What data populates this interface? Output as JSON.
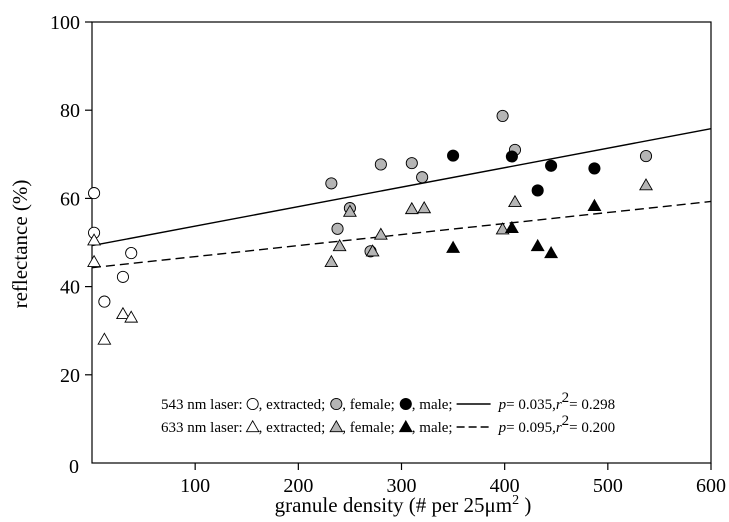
{
  "chart_data": {
    "type": "scatter",
    "xlabel": "granule density (# per 25",
    "xlabel_unit": "μm",
    "xlabel_sup": "2",
    "xlabel_end": " )",
    "ylabel": "reflectance (%)",
    "xlim": [
      0,
      600
    ],
    "ylim": [
      0,
      100
    ],
    "x_ticks": [
      100,
      200,
      300,
      400,
      500,
      600
    ],
    "y_ticks": [
      20,
      40,
      60,
      80,
      100
    ],
    "origin_label": "0",
    "series": [
      {
        "name": "543 nm laser, extracted",
        "marker": "circle",
        "fill": "#ffffff",
        "points": [
          [
            2,
            61.2
          ],
          [
            2,
            52.2
          ],
          [
            12,
            36.6
          ],
          [
            30,
            42.2
          ],
          [
            38,
            47.6
          ]
        ]
      },
      {
        "name": "543 nm laser, female",
        "marker": "circle",
        "fill": "#b5b5b5",
        "points": [
          [
            232,
            63.4
          ],
          [
            238,
            53.1
          ],
          [
            250,
            57.8
          ],
          [
            270,
            48.0
          ],
          [
            280,
            67.7
          ],
          [
            310,
            68.0
          ],
          [
            320,
            64.8
          ],
          [
            398,
            78.7
          ],
          [
            410,
            71.0
          ],
          [
            537,
            69.6
          ]
        ]
      },
      {
        "name": "543 nm laser, male",
        "marker": "circle",
        "fill": "#000000",
        "points": [
          [
            350,
            69.7
          ],
          [
            407,
            69.5
          ],
          [
            432,
            61.8
          ],
          [
            445,
            67.4
          ],
          [
            487,
            66.8
          ]
        ]
      },
      {
        "name": "633 nm laser, extracted",
        "marker": "triangle",
        "fill": "#ffffff",
        "points": [
          [
            2,
            50.5
          ],
          [
            2,
            45.6
          ],
          [
            12,
            28.0
          ],
          [
            30,
            33.8
          ],
          [
            38,
            33.0
          ]
        ]
      },
      {
        "name": "633 nm laser, female",
        "marker": "triangle",
        "fill": "#b5b5b5",
        "points": [
          [
            232,
            45.6
          ],
          [
            240,
            49.2
          ],
          [
            250,
            57.0
          ],
          [
            272,
            48.0
          ],
          [
            280,
            51.8
          ],
          [
            310,
            57.6
          ],
          [
            322,
            57.8
          ],
          [
            398,
            53.0
          ],
          [
            410,
            59.2
          ],
          [
            537,
            63.0
          ]
        ]
      },
      {
        "name": "633 nm laser, male",
        "marker": "triangle",
        "fill": "#000000",
        "points": [
          [
            350,
            48.8
          ],
          [
            407,
            53.3
          ],
          [
            432,
            49.2
          ],
          [
            445,
            47.6
          ],
          [
            487,
            58.3
          ]
        ]
      }
    ],
    "fits": [
      {
        "name": "543 nm laser fit",
        "style": "solid",
        "x": [
          0,
          600
        ],
        "y": [
          49.3,
          75.8
        ],
        "p": "p = 0.035",
        "r2": "0.298"
      },
      {
        "name": "633 nm laser fit",
        "style": "dashed",
        "x": [
          0,
          600
        ],
        "y": [
          44.3,
          59.3
        ],
        "p": "p = 0.095",
        "r2": "0.200"
      }
    ],
    "legend": {
      "placement": "bottom-right",
      "rows": [
        {
          "laser": "543 nm laser:",
          "marker": "circle",
          "extracted": ", extracted;",
          "female": ", female;",
          "male": ", male;",
          "line": "solid",
          "p": "p",
          "p_val": " = 0.035, ",
          "r": "r",
          "r2_sup": "2",
          "r2_val": " = 0.298"
        },
        {
          "laser": "633 nm laser:",
          "marker": "triangle",
          "extracted": ", extracted;",
          "female": ", female;",
          "male": ", male;",
          "line": "dashed",
          "p": "p",
          "p_val": " = 0.095, ",
          "r": "r",
          "r2_sup": "2",
          "r2_val": " = 0.200"
        }
      ]
    },
    "colors": {
      "extracted": "#ffffff",
      "female": "#b5b5b5",
      "male": "#000000",
      "stroke": "#000000"
    }
  }
}
